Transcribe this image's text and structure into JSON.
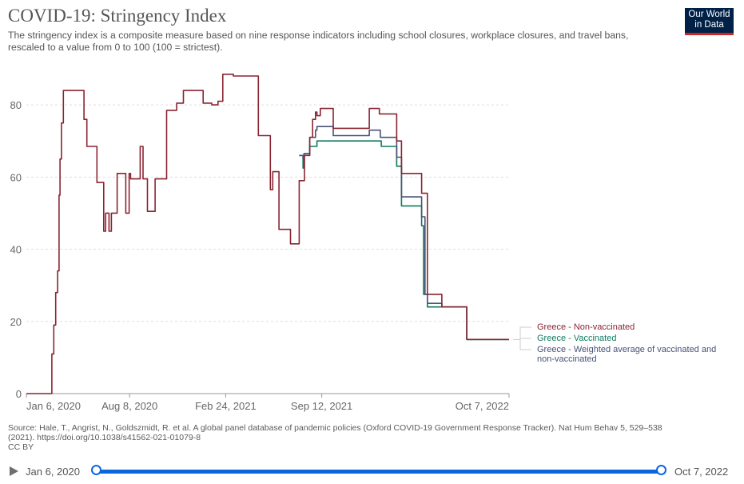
{
  "header": {
    "title": "COVID-19: Stringency Index",
    "subtitle": "The stringency index is a composite measure based on nine response indicators including school closures, workplace closures, and travel bans, rescaled to a value from 0 to 100 (100 = strictest).",
    "logo_line1": "Our World",
    "logo_line2": "in Data"
  },
  "chart_data": {
    "type": "line",
    "title": "COVID-19: Stringency Index",
    "xlabel": "",
    "ylabel": "",
    "ylim": [
      0,
      90
    ],
    "yticks": [
      0,
      20,
      40,
      60,
      80
    ],
    "xticks": [
      "Jan 6, 2020",
      "Aug 8, 2020",
      "Feb 24, 2021",
      "Sep 12, 2021",
      "Oct 7, 2022"
    ],
    "x_range": [
      "2020-01-06",
      "2022-10-07"
    ],
    "grid": true,
    "legend_placement": "right",
    "colors": {
      "non_vaccinated": "#8a2432",
      "vaccinated": "#0f7b5f",
      "weighted": "#4a5278"
    },
    "series": [
      {
        "name": "Greece - Non-vaccinated",
        "color": "#8a2432",
        "points": [
          [
            "2020-01-06",
            0
          ],
          [
            "2020-02-19",
            0
          ],
          [
            "2020-02-28",
            11
          ],
          [
            "2020-03-03",
            19
          ],
          [
            "2020-03-07",
            28
          ],
          [
            "2020-03-11",
            34
          ],
          [
            "2020-03-14",
            55
          ],
          [
            "2020-03-16",
            65
          ],
          [
            "2020-03-19",
            75
          ],
          [
            "2020-03-23",
            84
          ],
          [
            "2020-05-04",
            84
          ],
          [
            "2020-05-05",
            76
          ],
          [
            "2020-05-11",
            68.5
          ],
          [
            "2020-06-01",
            58.5
          ],
          [
            "2020-06-15",
            45
          ],
          [
            "2020-06-19",
            50
          ],
          [
            "2020-06-26",
            45
          ],
          [
            "2020-07-01",
            50
          ],
          [
            "2020-07-13",
            61
          ],
          [
            "2020-07-31",
            50
          ],
          [
            "2020-08-07",
            61
          ],
          [
            "2020-08-10",
            59.5
          ],
          [
            "2020-08-30",
            68.5
          ],
          [
            "2020-09-05",
            59.5
          ],
          [
            "2020-09-14",
            50.5
          ],
          [
            "2020-09-30",
            59.5
          ],
          [
            "2020-10-24",
            78.5
          ],
          [
            "2020-11-14",
            80.5
          ],
          [
            "2020-11-28",
            84
          ],
          [
            "2021-01-08",
            80.5
          ],
          [
            "2021-01-26",
            80
          ],
          [
            "2021-02-08",
            81
          ],
          [
            "2021-02-18",
            88.5
          ],
          [
            "2021-03-12",
            88
          ],
          [
            "2021-05-03",
            71.5
          ],
          [
            "2021-05-28",
            56.5
          ],
          [
            "2021-06-02",
            61.5
          ],
          [
            "2021-06-15",
            45.5
          ],
          [
            "2021-07-09",
            41.5
          ],
          [
            "2021-07-27",
            59
          ],
          [
            "2021-08-07",
            66
          ],
          [
            "2021-08-18",
            71
          ],
          [
            "2021-08-24",
            76
          ],
          [
            "2021-08-30",
            78
          ],
          [
            "2021-09-02",
            77
          ],
          [
            "2021-09-09",
            79
          ],
          [
            "2021-10-06",
            73.5
          ],
          [
            "2021-12-15",
            73.5
          ],
          [
            "2021-12-20",
            79
          ],
          [
            "2022-01-10",
            77.5
          ],
          [
            "2022-02-15",
            70
          ],
          [
            "2022-02-25",
            61
          ],
          [
            "2022-04-08",
            55.5
          ],
          [
            "2022-04-20",
            27.5
          ],
          [
            "2022-05-20",
            24
          ],
          [
            "2022-07-11",
            15
          ],
          [
            "2022-10-07",
            15
          ]
        ]
      },
      {
        "name": "Greece - Vaccinated",
        "color": "#0f7b5f",
        "points": [
          [
            "2021-07-27",
            66
          ],
          [
            "2021-08-04",
            62.5
          ],
          [
            "2021-08-06",
            66.5
          ],
          [
            "2021-08-18",
            68.5
          ],
          [
            "2021-09-02",
            70
          ],
          [
            "2022-01-12",
            70
          ],
          [
            "2022-01-14",
            68.5
          ],
          [
            "2022-02-15",
            63
          ],
          [
            "2022-02-25",
            52
          ],
          [
            "2022-04-08",
            46.5
          ],
          [
            "2022-04-12",
            27.5
          ],
          [
            "2022-04-20",
            24
          ],
          [
            "2022-05-20",
            24
          ],
          [
            "2022-07-11",
            15
          ],
          [
            "2022-10-07",
            15
          ]
        ]
      },
      {
        "name": "Greece - Weighted average of vaccinated and non-vaccinated",
        "color": "#4a5278",
        "points": [
          [
            "2021-07-27",
            66
          ],
          [
            "2021-08-04",
            65
          ],
          [
            "2021-08-06",
            66.5
          ],
          [
            "2021-08-18",
            71
          ],
          [
            "2021-08-30",
            73
          ],
          [
            "2021-09-02",
            74
          ],
          [
            "2021-10-06",
            71.5
          ],
          [
            "2021-12-15",
            71.5
          ],
          [
            "2021-12-20",
            73
          ],
          [
            "2022-01-12",
            71
          ],
          [
            "2022-02-15",
            65.5
          ],
          [
            "2022-02-25",
            54.5
          ],
          [
            "2022-04-08",
            49
          ],
          [
            "2022-04-15",
            27.5
          ],
          [
            "2022-04-20",
            25
          ],
          [
            "2022-05-20",
            24
          ],
          [
            "2022-07-11",
            15
          ],
          [
            "2022-10-07",
            15
          ]
        ]
      }
    ]
  },
  "legend": [
    {
      "label": "Greece - Non-vaccinated",
      "color": "#8a2432"
    },
    {
      "label": "Greece - Vaccinated",
      "color": "#0f7b5f"
    },
    {
      "label_line1": "Greece - Weighted average of vaccinated and",
      "label_line2": "non-vaccinated",
      "color": "#4a5278"
    }
  ],
  "footer": {
    "source_line1": "Source: Hale, T., Angrist, N., Goldszmidt, R. et al. A global panel database of pandemic policies (Oxford COVID-19 Government Response Tracker). Nat Hum Behav 5, 529–538",
    "source_line2": "(2021). https://doi.org/10.1038/s41562-021-01079-8",
    "license": "CC BY"
  },
  "timeline": {
    "start_label": "Jan 6, 2020",
    "end_label": "Oct 7, 2022",
    "play_icon": "play-icon",
    "range_start_fraction": 0,
    "range_end_fraction": 1
  }
}
